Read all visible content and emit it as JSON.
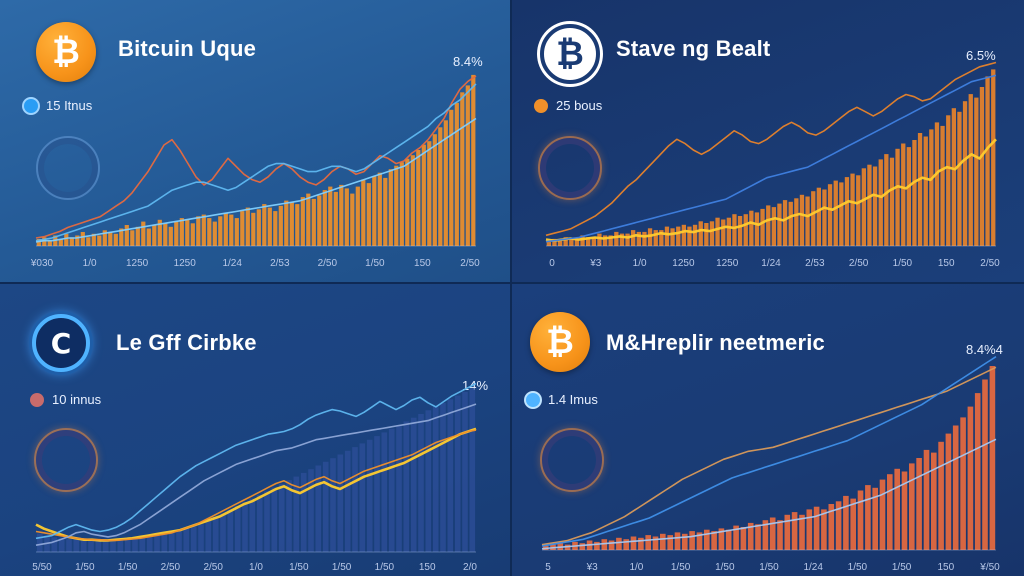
{
  "panels": [
    {
      "title": "Bitcuin Uque",
      "coin_icon": "bitcoin-icon",
      "coin_style": "orange",
      "coin_glyph": "₿",
      "legend_label": "15 Itnus",
      "legend_color": "#2a9df4",
      "percent_label": "8.4%",
      "emblem_glyph": ""
    },
    {
      "title": "Stave ng Bealt",
      "coin_icon": "bitcoin-icon",
      "coin_style": "outline",
      "coin_glyph": "₿",
      "legend_label": "25 bous",
      "legend_color": "#f0902a",
      "percent_label": "6.5%",
      "emblem_glyph": ""
    },
    {
      "title": "Le Gff Cirbke",
      "coin_icon": "coin-ring-icon",
      "coin_style": "ring",
      "coin_glyph": "C",
      "legend_label": "10 innus",
      "legend_color": "#c86b6b",
      "percent_label": "14%",
      "emblem_glyph": ""
    },
    {
      "title": "M&Hreplir neetmeric",
      "coin_icon": "bitcoin-icon",
      "coin_style": "orange",
      "coin_glyph": "₿",
      "legend_label": "1.4 Imus",
      "legend_color": "#4fb3ff",
      "percent_label": "8.4%4",
      "emblem_glyph": ""
    }
  ],
  "chart_data": [
    {
      "type": "bar",
      "title": "Bitcuin Uque",
      "x_tick_labels": [
        "¥030",
        "1/0",
        "1250",
        "1250",
        "1/24",
        "2/53",
        "2/50",
        "1/50",
        "150",
        "2/50"
      ],
      "bar_color": "#f0902a",
      "bars": [
        4,
        5,
        3,
        6,
        4,
        7,
        5,
        6,
        8,
        5,
        7,
        6,
        9,
        8,
        7,
        10,
        12,
        9,
        11,
        14,
        10,
        12,
        15,
        13,
        11,
        14,
        16,
        15,
        13,
        17,
        18,
        16,
        14,
        17,
        19,
        18,
        16,
        20,
        22,
        19,
        21,
        24,
        22,
        20,
        23,
        26,
        25,
        24,
        28,
        30,
        27,
        29,
        32,
        34,
        31,
        35,
        33,
        30,
        34,
        38,
        36,
        40,
        42,
        39,
        44,
        46,
        48,
        50,
        52,
        55,
        58,
        60,
        64,
        68,
        72,
        78,
        82,
        88,
        92,
        98
      ],
      "series": [
        {
          "name": "",
          "color": "#e86a3e",
          "values": [
            6,
            7,
            9,
            11,
            14,
            16,
            18,
            20,
            22,
            26,
            30,
            34,
            40,
            48,
            56,
            66,
            76,
            80,
            72,
            62,
            52,
            46,
            50,
            58,
            66,
            60,
            54,
            50,
            48,
            52,
            58,
            62,
            58,
            52,
            48,
            46,
            50,
            56,
            60,
            58,
            54,
            56,
            62,
            68,
            66,
            62,
            64,
            70,
            74,
            80,
            88,
            96,
            108,
            118,
            124,
            128
          ]
        },
        {
          "name": "",
          "color": "#5fb8f0",
          "values": [
            4,
            5,
            6,
            8,
            10,
            12,
            14,
            16,
            18,
            20,
            22,
            24,
            26,
            28,
            30,
            34,
            38,
            42,
            44,
            46,
            48,
            48,
            46,
            44,
            42,
            44,
            48,
            52,
            56,
            60,
            62,
            62,
            60,
            58,
            56,
            56,
            58,
            60,
            60,
            58,
            56,
            58,
            62,
            66,
            70,
            74,
            78,
            82,
            86,
            90,
            96,
            100,
            106,
            110,
            116,
            122
          ]
        },
        {
          "name": "",
          "color": "#7fd0ff",
          "values": [
            3,
            4,
            4,
            5,
            6,
            6,
            7,
            8,
            9,
            10,
            11,
            12,
            13,
            14,
            15,
            16,
            17,
            18,
            19,
            20,
            21,
            22,
            23,
            24,
            25,
            26,
            27,
            28,
            29,
            30,
            31,
            32,
            33,
            34,
            36,
            38,
            40,
            42,
            44,
            46,
            48,
            50,
            52,
            54,
            56,
            58,
            60,
            64,
            68,
            72,
            76,
            80,
            84,
            88,
            92,
            96
          ]
        }
      ],
      "ylim": [
        0,
        140
      ]
    },
    {
      "type": "bar",
      "title": "Stave ng Bealt",
      "x_tick_labels": [
        "0",
        "¥3",
        "1/0",
        "1250",
        "1250",
        "1/24",
        "2/53",
        "2/50",
        "1/50",
        "150",
        "2/50"
      ],
      "bar_color": "#e8832a",
      "bars": [
        3,
        4,
        3,
        5,
        4,
        4,
        6,
        5,
        5,
        7,
        6,
        6,
        8,
        7,
        7,
        9,
        8,
        8,
        10,
        9,
        9,
        11,
        10,
        11,
        12,
        11,
        12,
        14,
        13,
        14,
        16,
        15,
        16,
        18,
        17,
        18,
        20,
        19,
        21,
        23,
        22,
        24,
        26,
        25,
        27,
        29,
        28,
        31,
        33,
        32,
        35,
        37,
        36,
        39,
        41,
        40,
        44,
        46,
        45,
        49,
        52,
        50,
        55,
        58,
        56,
        60,
        64,
        62,
        66,
        70,
        68,
        74,
        78,
        76,
        82,
        86,
        84,
        90,
        96,
        100
      ],
      "series": [
        {
          "name": "",
          "color": "#ffcc2e",
          "values": [
            6,
            5,
            6,
            7,
            6,
            7,
            8,
            7,
            8,
            9,
            8,
            10,
            9,
            10,
            12,
            11,
            12,
            14,
            13,
            15,
            14,
            16,
            18,
            17,
            19,
            22,
            20,
            24,
            26,
            24,
            28,
            30,
            28,
            32,
            36,
            34,
            38,
            42,
            40,
            44,
            48,
            46,
            52,
            56,
            54,
            60,
            64,
            62,
            70,
            74,
            72,
            80,
            86,
            82,
            92,
            100
          ]
        },
        {
          "name": "",
          "color": "#e8832a",
          "values": [
            10,
            12,
            14,
            16,
            20,
            24,
            28,
            34,
            40,
            48,
            56,
            62,
            70,
            78,
            86,
            94,
            100,
            96,
            90,
            86,
            90,
            96,
            102,
            108,
            104,
            98,
            96,
            100,
            106,
            112,
            116,
            112,
            106,
            104,
            108,
            114,
            120,
            126,
            130,
            126,
            122,
            126,
            132,
            138,
            142,
            140,
            136,
            138,
            144,
            150,
            156,
            160,
            164,
            168,
            170,
            172
          ]
        },
        {
          "name": "",
          "color": "#3f7fe0",
          "values": [
            4,
            5,
            6,
            7,
            8,
            10,
            12,
            14,
            16,
            18,
            20,
            22,
            24,
            26,
            28,
            30,
            32,
            34,
            36,
            38,
            40,
            42,
            44,
            48,
            52,
            56,
            60,
            64,
            66,
            68,
            70,
            72,
            74,
            78,
            82,
            86,
            90,
            94,
            98,
            102,
            106,
            110,
            114,
            118,
            122,
            126,
            130,
            134,
            138,
            142,
            146,
            150,
            154,
            156,
            158,
            160
          ]
        }
      ],
      "ylim": [
        0,
        180
      ]
    },
    {
      "type": "line",
      "title": "Le Gff Cirbke",
      "x_tick_labels": [
        "5/50",
        "1/50",
        "1/50",
        "2/50",
        "2/50",
        "1/0",
        "1/50",
        "1/50",
        "1/50",
        "150",
        "2/0"
      ],
      "bar_color": "#2d4f9a",
      "bars": [
        20,
        18,
        16,
        15,
        14,
        14,
        13,
        13,
        12,
        12,
        13,
        13,
        14,
        14,
        15,
        16,
        18,
        20,
        22,
        24,
        26,
        28,
        30,
        34,
        38,
        42,
        46,
        50,
        54,
        58,
        62,
        66,
        70,
        74,
        78,
        82,
        86,
        90,
        94,
        98,
        102,
        106,
        110,
        114,
        118,
        122,
        126,
        130,
        134,
        138,
        142,
        146,
        150,
        154,
        158,
        162,
        166,
        170,
        174,
        178
      ],
      "series": [
        {
          "name": "",
          "color": "#ffcc2e",
          "values": [
            40,
            34,
            30,
            26,
            22,
            20,
            18,
            18,
            17,
            17,
            18,
            19,
            20,
            22,
            24,
            26,
            28,
            30,
            32,
            36,
            40,
            44,
            48,
            52,
            58,
            64,
            70,
            74,
            80,
            86,
            92,
            96,
            90,
            86,
            92,
            98,
            102,
            96,
            92,
            98,
            104,
            110,
            114,
            118,
            122,
            126,
            130,
            136,
            142,
            148,
            154,
            160,
            166,
            172,
            176,
            180
          ]
        },
        {
          "name": "",
          "color": "#f0902a",
          "values": [
            30,
            28,
            26,
            24,
            22,
            20,
            19,
            18,
            18,
            17,
            17,
            18,
            19,
            20,
            22,
            24,
            26,
            28,
            32,
            36,
            40,
            46,
            52,
            58,
            64,
            70,
            76,
            82,
            88,
            94,
            100,
            104,
            98,
            94,
            100,
            106,
            110,
            104,
            100,
            106,
            112,
            118,
            122,
            126,
            130,
            134,
            138,
            142,
            148,
            154,
            160,
            164,
            168,
            172,
            176,
            178
          ]
        },
        {
          "name": "",
          "color": "#5fb8f0",
          "values": [
            20,
            22,
            24,
            30,
            36,
            40,
            36,
            32,
            30,
            32,
            36,
            42,
            50,
            60,
            70,
            80,
            90,
            100,
            110,
            118,
            126,
            132,
            138,
            144,
            150,
            156,
            160,
            164,
            168,
            172,
            174,
            176,
            180,
            186,
            194,
            200,
            204,
            208,
            206,
            202,
            198,
            204,
            212,
            220,
            214,
            208,
            214,
            222,
            226,
            218,
            212,
            220,
            228,
            234,
            240,
            246
          ]
        },
        {
          "name": "",
          "color": "#8fa8d8",
          "values": [
            10,
            12,
            14,
            18,
            22,
            28,
            30,
            26,
            24,
            22,
            24,
            28,
            34,
            40,
            48,
            56,
            64,
            72,
            80,
            88,
            96,
            104,
            110,
            116,
            122,
            128,
            132,
            136,
            140,
            144,
            148,
            150,
            152,
            156,
            160,
            164,
            166,
            168,
            170,
            172,
            174,
            176,
            178,
            180,
            182,
            184,
            186,
            188,
            190,
            192,
            196,
            200,
            204,
            208,
            212,
            216
          ]
        }
      ],
      "ylim": [
        0,
        260
      ]
    },
    {
      "type": "bar",
      "title": "M&Hreplir neetmeric",
      "x_tick_labels": [
        "5",
        "¥3",
        "1/0",
        "1/50",
        "1/50",
        "1/50",
        "1/24",
        "1/50",
        "1/50",
        "150",
        "¥/50"
      ],
      "bar_color": "#e86a3e",
      "bars": [
        3,
        4,
        5,
        4,
        6,
        5,
        7,
        6,
        8,
        7,
        9,
        8,
        10,
        9,
        11,
        10,
        12,
        11,
        13,
        12,
        14,
        13,
        15,
        14,
        16,
        15,
        18,
        17,
        20,
        19,
        22,
        24,
        22,
        26,
        28,
        26,
        30,
        32,
        30,
        34,
        36,
        40,
        38,
        44,
        48,
        46,
        52,
        56,
        60,
        58,
        64,
        68,
        74,
        72,
        80,
        86,
        92,
        98,
        106,
        116,
        126,
        136
      ],
      "series": [
        {
          "name": "",
          "color": "#d99a5a",
          "values": [
            8,
            10,
            12,
            14,
            18,
            22,
            26,
            32,
            38,
            44,
            50,
            58,
            66,
            74,
            82,
            90,
            98,
            106,
            112,
            118,
            124,
            130,
            136,
            140,
            144,
            148,
            150,
            152,
            154,
            158,
            162,
            166,
            170,
            174,
            178,
            182,
            186,
            190,
            194,
            198,
            202,
            206,
            210,
            214,
            218,
            222,
            226,
            230,
            234,
            238,
            244,
            250,
            256,
            262,
            268,
            274
          ]
        },
        {
          "name": "",
          "color": "#3f8fe8",
          "values": [
            6,
            8,
            10,
            12,
            14,
            16,
            20,
            24,
            28,
            32,
            36,
            40,
            44,
            48,
            54,
            60,
            66,
            72,
            78,
            84,
            90,
            96,
            102,
            108,
            112,
            116,
            120,
            124,
            128,
            132,
            136,
            140,
            144,
            148,
            152,
            156,
            160,
            164,
            170,
            176,
            182,
            188,
            194,
            200,
            206,
            212,
            218,
            226,
            234,
            242,
            250,
            258,
            266,
            274,
            282,
            290
          ]
        },
        {
          "name": "",
          "color": "#a8c8f0",
          "values": [
            2,
            3,
            4,
            5,
            6,
            7,
            8,
            9,
            10,
            11,
            12,
            13,
            14,
            15,
            16,
            17,
            18,
            19,
            20,
            22,
            24,
            26,
            28,
            30,
            32,
            34,
            36,
            38,
            40,
            42,
            44,
            46,
            48,
            50,
            54,
            58,
            62,
            66,
            70,
            74,
            78,
            82,
            88,
            94,
            100,
            106,
            112,
            118,
            124,
            130,
            136,
            142,
            148,
            154,
            160,
            166
          ]
        }
      ],
      "ylim": [
        0,
        300
      ]
    }
  ]
}
